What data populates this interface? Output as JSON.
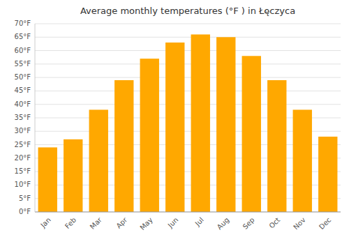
{
  "chart_data": {
    "type": "bar",
    "title": "Average monthly temperatures (°F ) in Łęczyca",
    "categories": [
      "Jan",
      "Feb",
      "Mar",
      "Apr",
      "May",
      "Jun",
      "Jul",
      "Aug",
      "Sep",
      "Oct",
      "Nov",
      "Dec"
    ],
    "values": [
      24,
      27,
      38,
      49,
      57,
      63,
      66,
      65,
      58,
      49,
      38,
      28
    ],
    "color": "#FFA800",
    "ylim": [
      0,
      70
    ],
    "yticks": [
      {
        "value": 0,
        "label": "0°F"
      },
      {
        "value": 5,
        "label": "5°F"
      },
      {
        "value": 10,
        "label": "10°F"
      },
      {
        "value": 15,
        "label": "15°F"
      },
      {
        "value": 20,
        "label": "20°F"
      },
      {
        "value": 25,
        "label": "25°F"
      },
      {
        "value": 30,
        "label": "30°F"
      },
      {
        "value": 35,
        "label": "35°F"
      },
      {
        "value": 40,
        "label": "40°F"
      },
      {
        "value": 45,
        "label": "45°F"
      },
      {
        "value": 50,
        "label": "50°F"
      },
      {
        "value": 55,
        "label": "55°F"
      },
      {
        "value": 60,
        "label": "60°F"
      },
      {
        "value": 65,
        "label": "65°F"
      },
      {
        "value": 70,
        "label": "70°F"
      }
    ],
    "grid": true
  }
}
